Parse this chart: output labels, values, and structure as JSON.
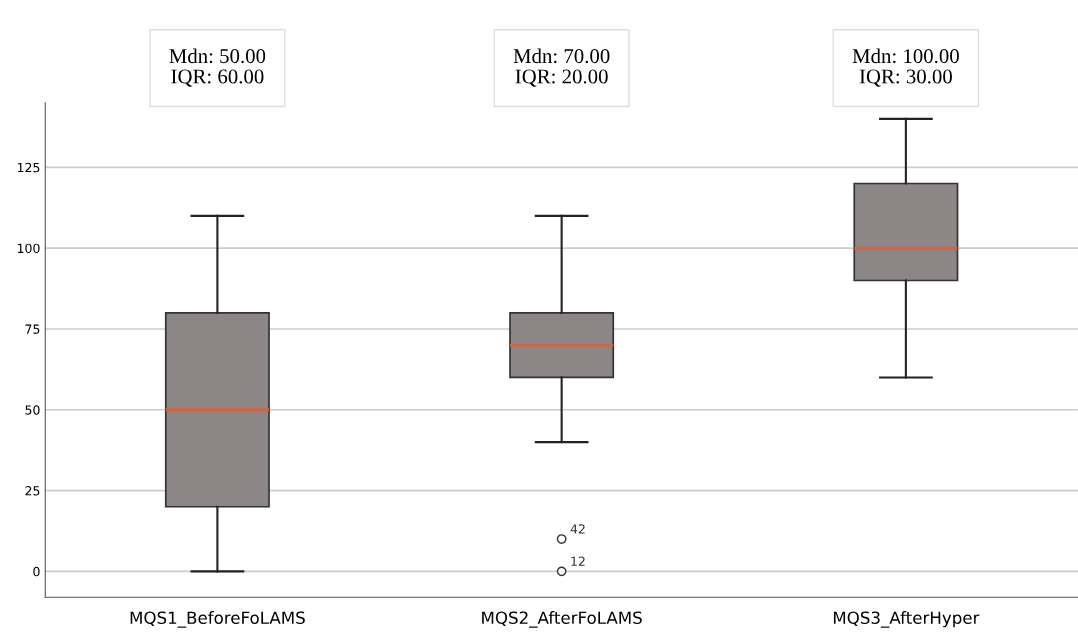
{
  "chart_data": {
    "type": "box",
    "categories": [
      "MQS1_BeforeFoLAMS",
      "MQS2_AfterFoLAMS",
      "MQS3_AfterHyper"
    ],
    "boxes": [
      {
        "low": 0,
        "q1": 20,
        "median": 50,
        "q3": 80,
        "high": 110
      },
      {
        "low": 40,
        "q1": 60,
        "median": 70,
        "q3": 80,
        "high": 110,
        "outliers": [
          10,
          0
        ]
      },
      {
        "low": 60,
        "q1": 90,
        "median": 100,
        "q3": 120,
        "high": 140
      }
    ],
    "color": "#8c8686",
    "ylim": [
      -8,
      145
    ],
    "yticks": [
      0,
      25,
      50,
      75,
      100,
      125
    ],
    "grid": "y",
    "annotations": [
      "Mdn: 50.00\nIQR: 60.00",
      "Mdn: 70.00\nIQR: 20.00",
      "Mdn: 100.00\nIQR: 30.00",
      "42",
      "12"
    ]
  }
}
